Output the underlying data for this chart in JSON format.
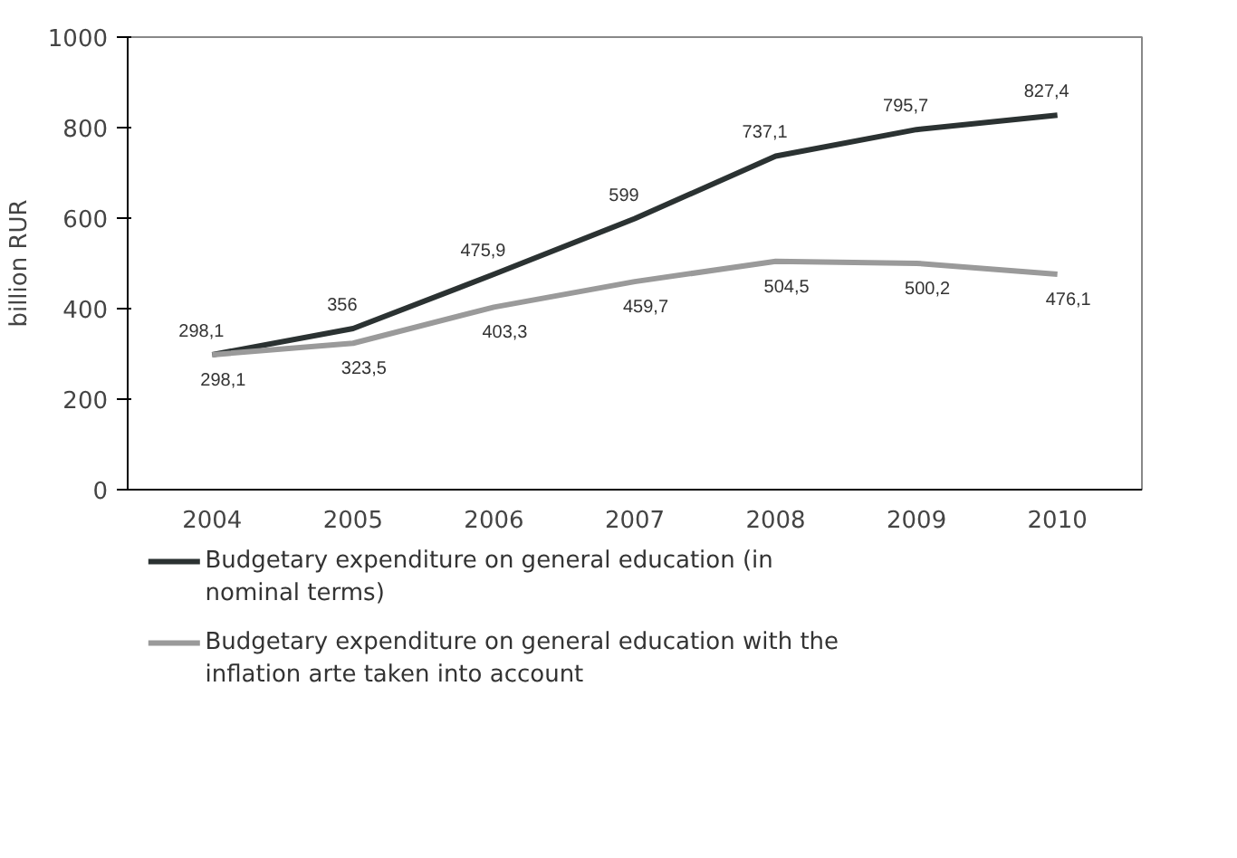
{
  "chart_data": {
    "type": "line",
    "ylabel": "billion RUR",
    "categories": [
      "2004",
      "2005",
      "2006",
      "2007",
      "2008",
      "2009",
      "2010"
    ],
    "series": [
      {
        "name": "Budgetary expenditure on general education (in nominal terms)",
        "color": "#2b3232",
        "values": [
          298.1,
          356,
          475.9,
          599,
          737.1,
          795.7,
          827.4
        ],
        "value_labels": [
          "298,1",
          "356",
          "475,9",
          "599",
          "737,1",
          "795,7",
          "827,4"
        ]
      },
      {
        "name": "Budgetary expenditure on general education with the inflation arte taken into account",
        "color": "#9a9a9a",
        "values": [
          298.1,
          323.5,
          403.3,
          459.7,
          504.5,
          500.2,
          476.1
        ],
        "value_labels": [
          "298,1",
          "323,5",
          "403,3",
          "459,7",
          "504,5",
          "500,2",
          "476,1"
        ]
      }
    ],
    "ylim": [
      0,
      1000
    ],
    "yticks": [
      0,
      200,
      400,
      600,
      800,
      1000
    ],
    "grid": false,
    "legend": "bottom",
    "marker": "none",
    "line_style": "solid"
  }
}
